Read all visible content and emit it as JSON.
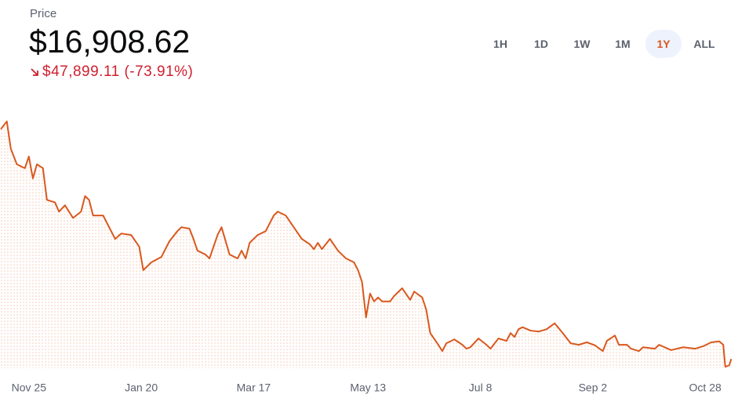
{
  "header": {
    "label": "Price",
    "price": "$16,908.62",
    "change": "$47,899.11 (-73.91%)"
  },
  "ranges": {
    "options": [
      "1H",
      "1D",
      "1W",
      "1M",
      "1Y",
      "ALL"
    ],
    "selected": 4
  },
  "chart_data": {
    "type": "line",
    "color": "#d9581e",
    "x": [
      0,
      3,
      5,
      8,
      12,
      14,
      16,
      18,
      21,
      23,
      27,
      29,
      32,
      36,
      40,
      42,
      44,
      46,
      51,
      55,
      57,
      60,
      65,
      69,
      71,
      75,
      80,
      84,
      88,
      90,
      94,
      96,
      98,
      102,
      104,
      108,
      110,
      114,
      118,
      120,
      122,
      124,
      128,
      132,
      134,
      136,
      138,
      142,
      146,
      150,
      154,
      156,
      158,
      160,
      164,
      168,
      172,
      176,
      178,
      180,
      182,
      184,
      186,
      188,
      190,
      194,
      196,
      200,
      204,
      206,
      210,
      212,
      214,
      218,
      220,
      222,
      226,
      230,
      232,
      234,
      238,
      242,
      244,
      248,
      252,
      254,
      256,
      258,
      260,
      264,
      268,
      272,
      276,
      280,
      284,
      288,
      292,
      296,
      300,
      302,
      306,
      308,
      312,
      314,
      318,
      320,
      326,
      328,
      334,
      340,
      346,
      350,
      354,
      358,
      360,
      361,
      363,
      364
    ],
    "values": [
      64000,
      65600,
      60000,
      56800,
      56000,
      58400,
      53900,
      56800,
      56000,
      49500,
      49000,
      47100,
      48400,
      45800,
      47100,
      50300,
      49500,
      46300,
      46300,
      43100,
      41500,
      42600,
      42300,
      39900,
      35100,
      36700,
      37800,
      41000,
      43100,
      43900,
      43600,
      41500,
      39100,
      38300,
      37500,
      42300,
      43900,
      38300,
      37500,
      39100,
      37500,
      40700,
      42300,
      43100,
      44700,
      46300,
      47100,
      46300,
      43900,
      41500,
      40400,
      39400,
      40700,
      39400,
      41500,
      39100,
      37500,
      36700,
      35100,
      32700,
      25400,
      30300,
      28700,
      29500,
      28700,
      28700,
      29800,
      31400,
      29000,
      30700,
      29500,
      27000,
      22200,
      19800,
      18500,
      20100,
      20900,
      19800,
      19000,
      19300,
      21100,
      19800,
      19000,
      21100,
      20600,
      22200,
      21400,
      23000,
      23400,
      22700,
      22500,
      23000,
      24200,
      22200,
      20100,
      19800,
      20300,
      19700,
      18500,
      20600,
      21700,
      19800,
      19800,
      19000,
      18500,
      19300,
      19000,
      19800,
      18700,
      19300,
      19000,
      19500,
      20300,
      20500,
      19800,
      15300,
      15600,
      16900
    ],
    "xlim": [
      0,
      365
    ],
    "ylim": [
      15000,
      68000
    ],
    "xticks": [
      {
        "value": 14,
        "label": "Nov 25"
      },
      {
        "value": 70,
        "label": "Jan 20"
      },
      {
        "value": 126,
        "label": "Mar 17"
      },
      {
        "value": 183,
        "label": "May 13"
      },
      {
        "value": 239,
        "label": "Jul 8"
      },
      {
        "value": 295,
        "label": "Sep 2"
      },
      {
        "value": 351,
        "label": "Oct 28"
      }
    ]
  }
}
